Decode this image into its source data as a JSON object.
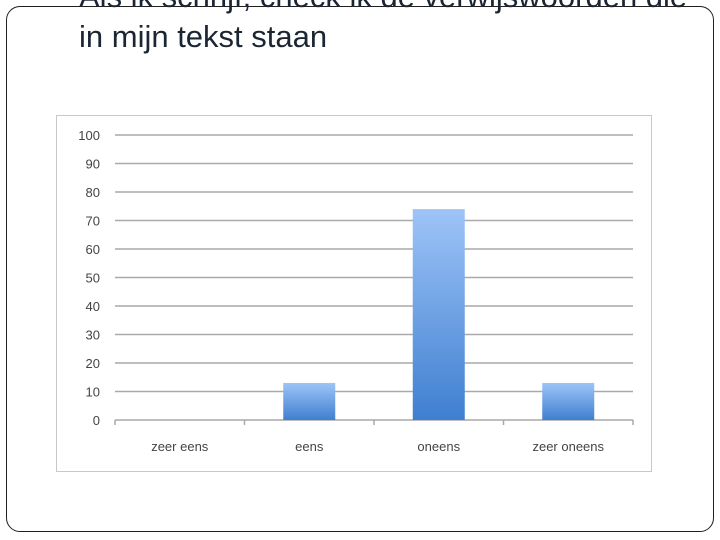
{
  "slide": {
    "title": "Als ik schrijf, check ik de verwijswoorden die in mijn tekst staan"
  },
  "colors": {
    "bar_top": "#9ec4f7",
    "bar_bottom": "#3f7fd0",
    "grid": "#a9a9a9",
    "text": "#444444"
  },
  "chart_data": {
    "type": "bar",
    "categories": [
      "zeer eens",
      "eens",
      "oneens",
      "zeer oneens"
    ],
    "values": [
      0,
      13,
      74,
      13
    ],
    "ylim": [
      0,
      100
    ],
    "yticks": [
      0,
      10,
      20,
      30,
      40,
      50,
      60,
      70,
      80,
      90,
      100
    ],
    "grid": true,
    "legend": "none"
  }
}
